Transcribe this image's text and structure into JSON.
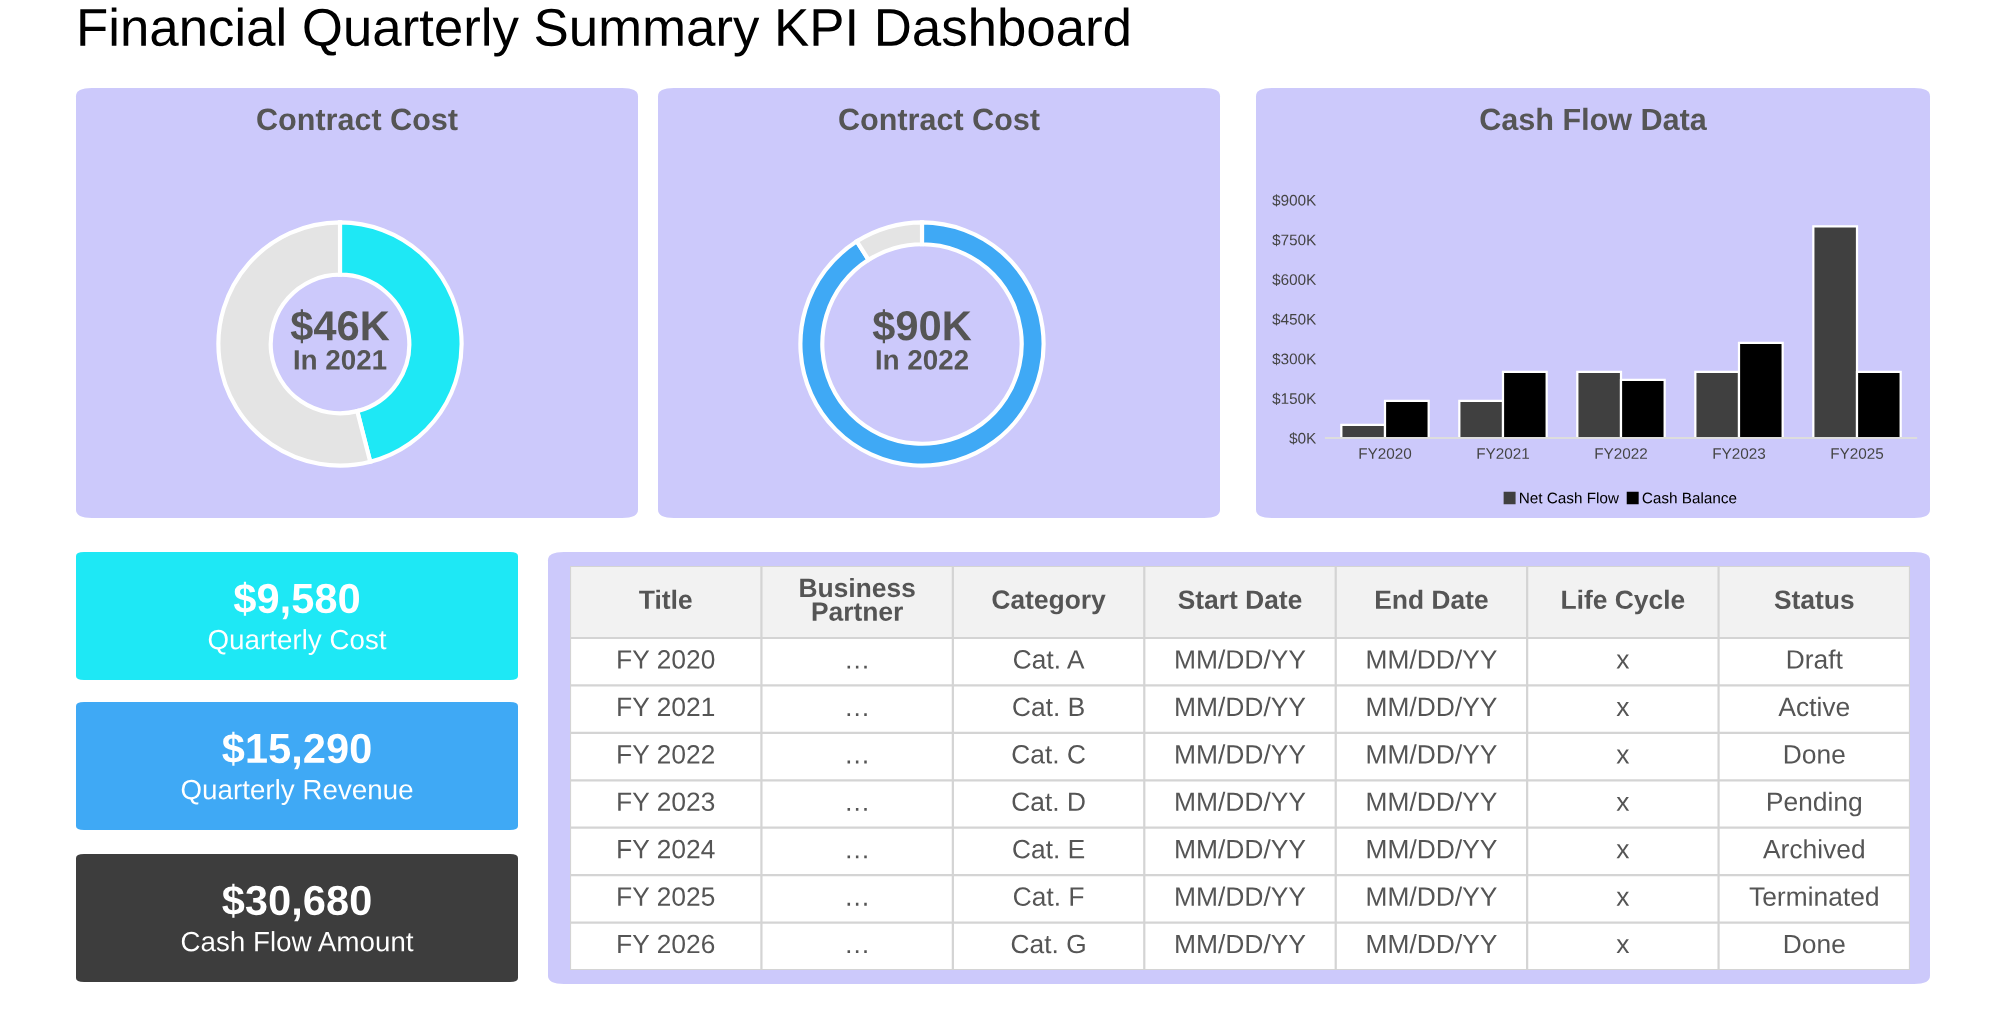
{
  "chart_data": [
    {
      "type": "other",
      "title": "Financial Quarterly Summary KPI Dashboard"
    },
    {
      "type": "donut",
      "title": "Contract Cost",
      "categories": [
        null,
        null
      ],
      "values": [
        46,
        54
      ],
      "colors": [
        "#1ee8f5",
        "#e4e4e4"
      ],
      "annotations": [
        "$46K",
        "In 2021"
      ]
    },
    {
      "type": "donut",
      "title": "Contract Cost",
      "categories": [
        null,
        null
      ],
      "values": [
        91,
        9
      ],
      "colors": [
        "#3fa9f5",
        "#e4e4e4"
      ],
      "annotations": [
        "$90K",
        "In 2022"
      ]
    },
    {
      "type": "bar",
      "title": "Cash Flow Data",
      "categories": [
        "FY2020",
        "FY2021",
        "FY2022",
        "FY2023",
        "FY2025"
      ],
      "series": [
        {
          "name": "Net Cash Flow",
          "color": "#404040",
          "values": [
            50,
            140,
            250,
            250,
            800
          ]
        },
        {
          "name": "Cash Balance",
          "color": "#000000",
          "values": [
            140,
            250,
            220,
            360,
            250
          ]
        }
      ],
      "ylim": [
        0,
        900
      ],
      "yticks": [
        {
          "value": 0,
          "label": "$0K"
        },
        {
          "value": 150,
          "label": "$150K"
        },
        {
          "value": 300,
          "label": "$300K"
        },
        {
          "value": 450,
          "label": "$450K"
        },
        {
          "value": 600,
          "label": "$600K"
        },
        {
          "value": 750,
          "label": "$750K"
        },
        {
          "value": 900,
          "label": "$900K"
        }
      ],
      "grid": false,
      "legend": "bottom"
    },
    {
      "type": "other",
      "colors": [
        "#1ee8f5",
        "#3fa9f5",
        "#3d3d3d"
      ],
      "annotations": [
        "$9,580",
        "Quarterly Cost",
        "$15,290",
        "Quarterly Revenue",
        "$30,680",
        "Cash Flow Amount"
      ]
    },
    {
      "type": "other",
      "categories": [
        "Title",
        "Business\nPartner",
        "Category",
        "Start Date",
        "End Date",
        "Life Cycle",
        "Status"
      ],
      "annotations": [
        "FY 2020",
        "…",
        "Cat. A",
        "MM/DD/YY",
        "MM/DD/YY",
        "x",
        "Draft",
        "FY 2021",
        "…",
        "Cat. B",
        "MM/DD/YY",
        "MM/DD/YY",
        "x",
        "Active",
        "FY 2022",
        "…",
        "Cat. C",
        "MM/DD/YY",
        "MM/DD/YY",
        "x",
        "Done",
        "FY 2023",
        "…",
        "Cat. D",
        "MM/DD/YY",
        "MM/DD/YY",
        "x",
        "Pending",
        "FY 2024",
        "…",
        "Cat. E",
        "MM/DD/YY",
        "MM/DD/YY",
        "x",
        "Archived",
        "FY 2025",
        "…",
        "Cat. F",
        "MM/DD/YY",
        "MM/DD/YY",
        "x",
        "Terminated",
        "FY 2026",
        "…",
        "Cat. G",
        "MM/DD/YY",
        "MM/DD/YY",
        "x",
        "Done"
      ]
    }
  ]
}
